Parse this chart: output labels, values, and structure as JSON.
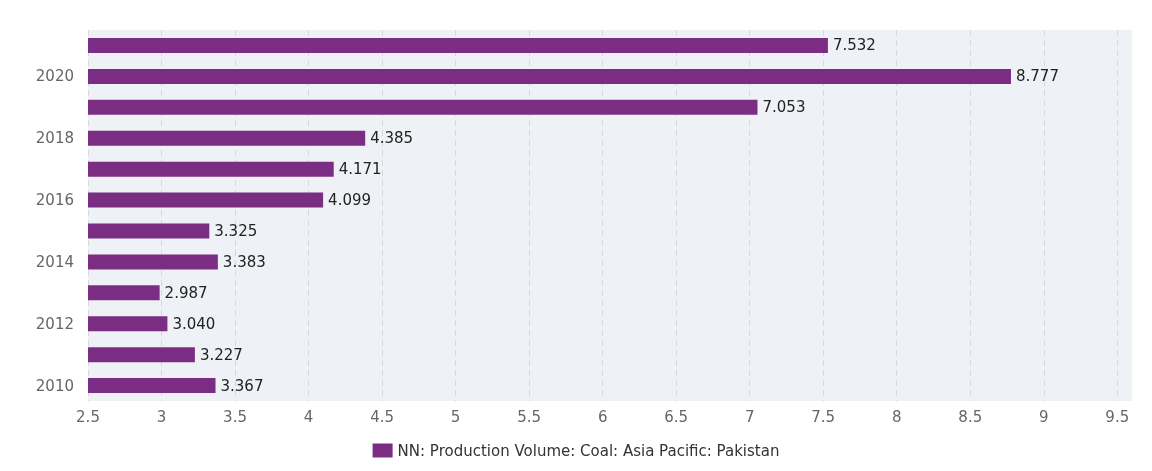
{
  "chart_data": {
    "type": "bar",
    "orientation": "horizontal",
    "categories": [
      null,
      "2020",
      null,
      "2018",
      null,
      "2016",
      null,
      "2014",
      null,
      "2012",
      null,
      "2010"
    ],
    "series": [
      {
        "name": "NN: Production Volume: Coal: Asia Pacific: Pakistan",
        "color": "#7b2c83",
        "values": [
          7.532,
          8.777,
          7.053,
          4.385,
          4.171,
          4.099,
          3.325,
          3.383,
          2.987,
          3.04,
          3.227,
          3.367
        ],
        "value_labels": [
          "7.532",
          "8.777",
          "7.053",
          "4.385",
          "4.171",
          "4.099",
          "3.325",
          "3.383",
          "2.987",
          "3.040",
          "3.227",
          "3.367"
        ]
      }
    ],
    "xlim": [
      2.5,
      9.6
    ],
    "xticks": [
      2.5,
      3,
      3.5,
      4,
      4.5,
      5,
      5.5,
      6,
      6.5,
      7,
      7.5,
      8,
      8.5,
      9,
      9.5
    ],
    "grid": "x",
    "legend": "bottom"
  }
}
